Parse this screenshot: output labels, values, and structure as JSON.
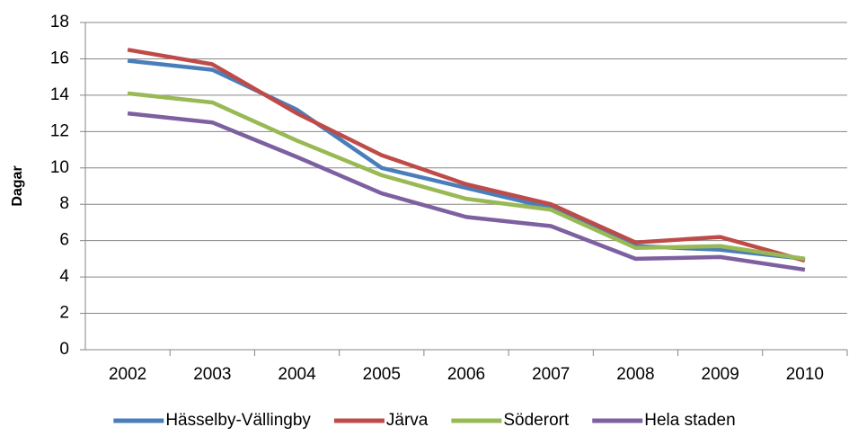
{
  "chart_data": {
    "type": "line",
    "y_label": "Dagar",
    "categories": [
      "2002",
      "2003",
      "2004",
      "2005",
      "2006",
      "2007",
      "2008",
      "2009",
      "2010"
    ],
    "series": [
      {
        "name": "Hässelby-Vällingby",
        "color": "#4a7ebb",
        "values": [
          15.9,
          15.4,
          13.2,
          10.0,
          8.9,
          7.8,
          5.7,
          5.5,
          5.0
        ]
      },
      {
        "name": "Järva",
        "color": "#be4b48",
        "values": [
          16.5,
          15.7,
          13.0,
          10.7,
          9.1,
          8.0,
          5.9,
          6.2,
          4.9
        ]
      },
      {
        "name": "Söderort",
        "color": "#98b954",
        "values": [
          14.1,
          13.6,
          11.5,
          9.6,
          8.3,
          7.7,
          5.6,
          5.7,
          5.0
        ]
      },
      {
        "name": "Hela staden",
        "color": "#7d60a0",
        "values": [
          13.0,
          12.5,
          10.6,
          8.6,
          7.3,
          6.8,
          5.0,
          5.1,
          4.4
        ]
      }
    ],
    "ylim": [
      0,
      18
    ],
    "yticks": [
      0,
      2,
      4,
      6,
      8,
      10,
      12,
      14,
      16,
      18
    ],
    "grid": true,
    "legend": "bottom"
  }
}
